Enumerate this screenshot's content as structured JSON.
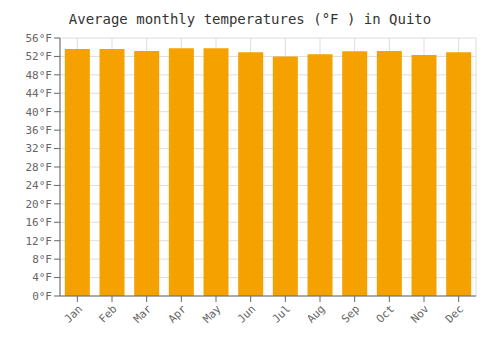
{
  "chart_data": {
    "type": "bar",
    "title": "Average monthly temperatures (°F ) in Quito",
    "categories": [
      "Jan",
      "Feb",
      "Mar",
      "Apr",
      "May",
      "Jun",
      "Jul",
      "Aug",
      "Sep",
      "Oct",
      "Nov",
      "Dec"
    ],
    "values": [
      53.6,
      53.6,
      53.2,
      53.8,
      53.8,
      52.9,
      52.0,
      52.5,
      53.1,
      53.2,
      52.3,
      52.9
    ],
    "color": "#F5A200",
    "ylim": [
      0,
      56
    ],
    "yticks": [
      {
        "value": 0,
        "label": "0°F"
      },
      {
        "value": 4,
        "label": "4°F"
      },
      {
        "value": 8,
        "label": "8°F"
      },
      {
        "value": 12,
        "label": "12°F"
      },
      {
        "value": 16,
        "label": "16°F"
      },
      {
        "value": 20,
        "label": "20°F"
      },
      {
        "value": 24,
        "label": "24°F"
      },
      {
        "value": 28,
        "label": "28°F"
      },
      {
        "value": 32,
        "label": "32°F"
      },
      {
        "value": 36,
        "label": "36°F"
      },
      {
        "value": 40,
        "label": "40°F"
      },
      {
        "value": 44,
        "label": "44°F"
      },
      {
        "value": 48,
        "label": "48°F"
      },
      {
        "value": 52,
        "label": "52°F"
      },
      {
        "value": 56,
        "label": "56°F"
      }
    ],
    "grid": true
  }
}
